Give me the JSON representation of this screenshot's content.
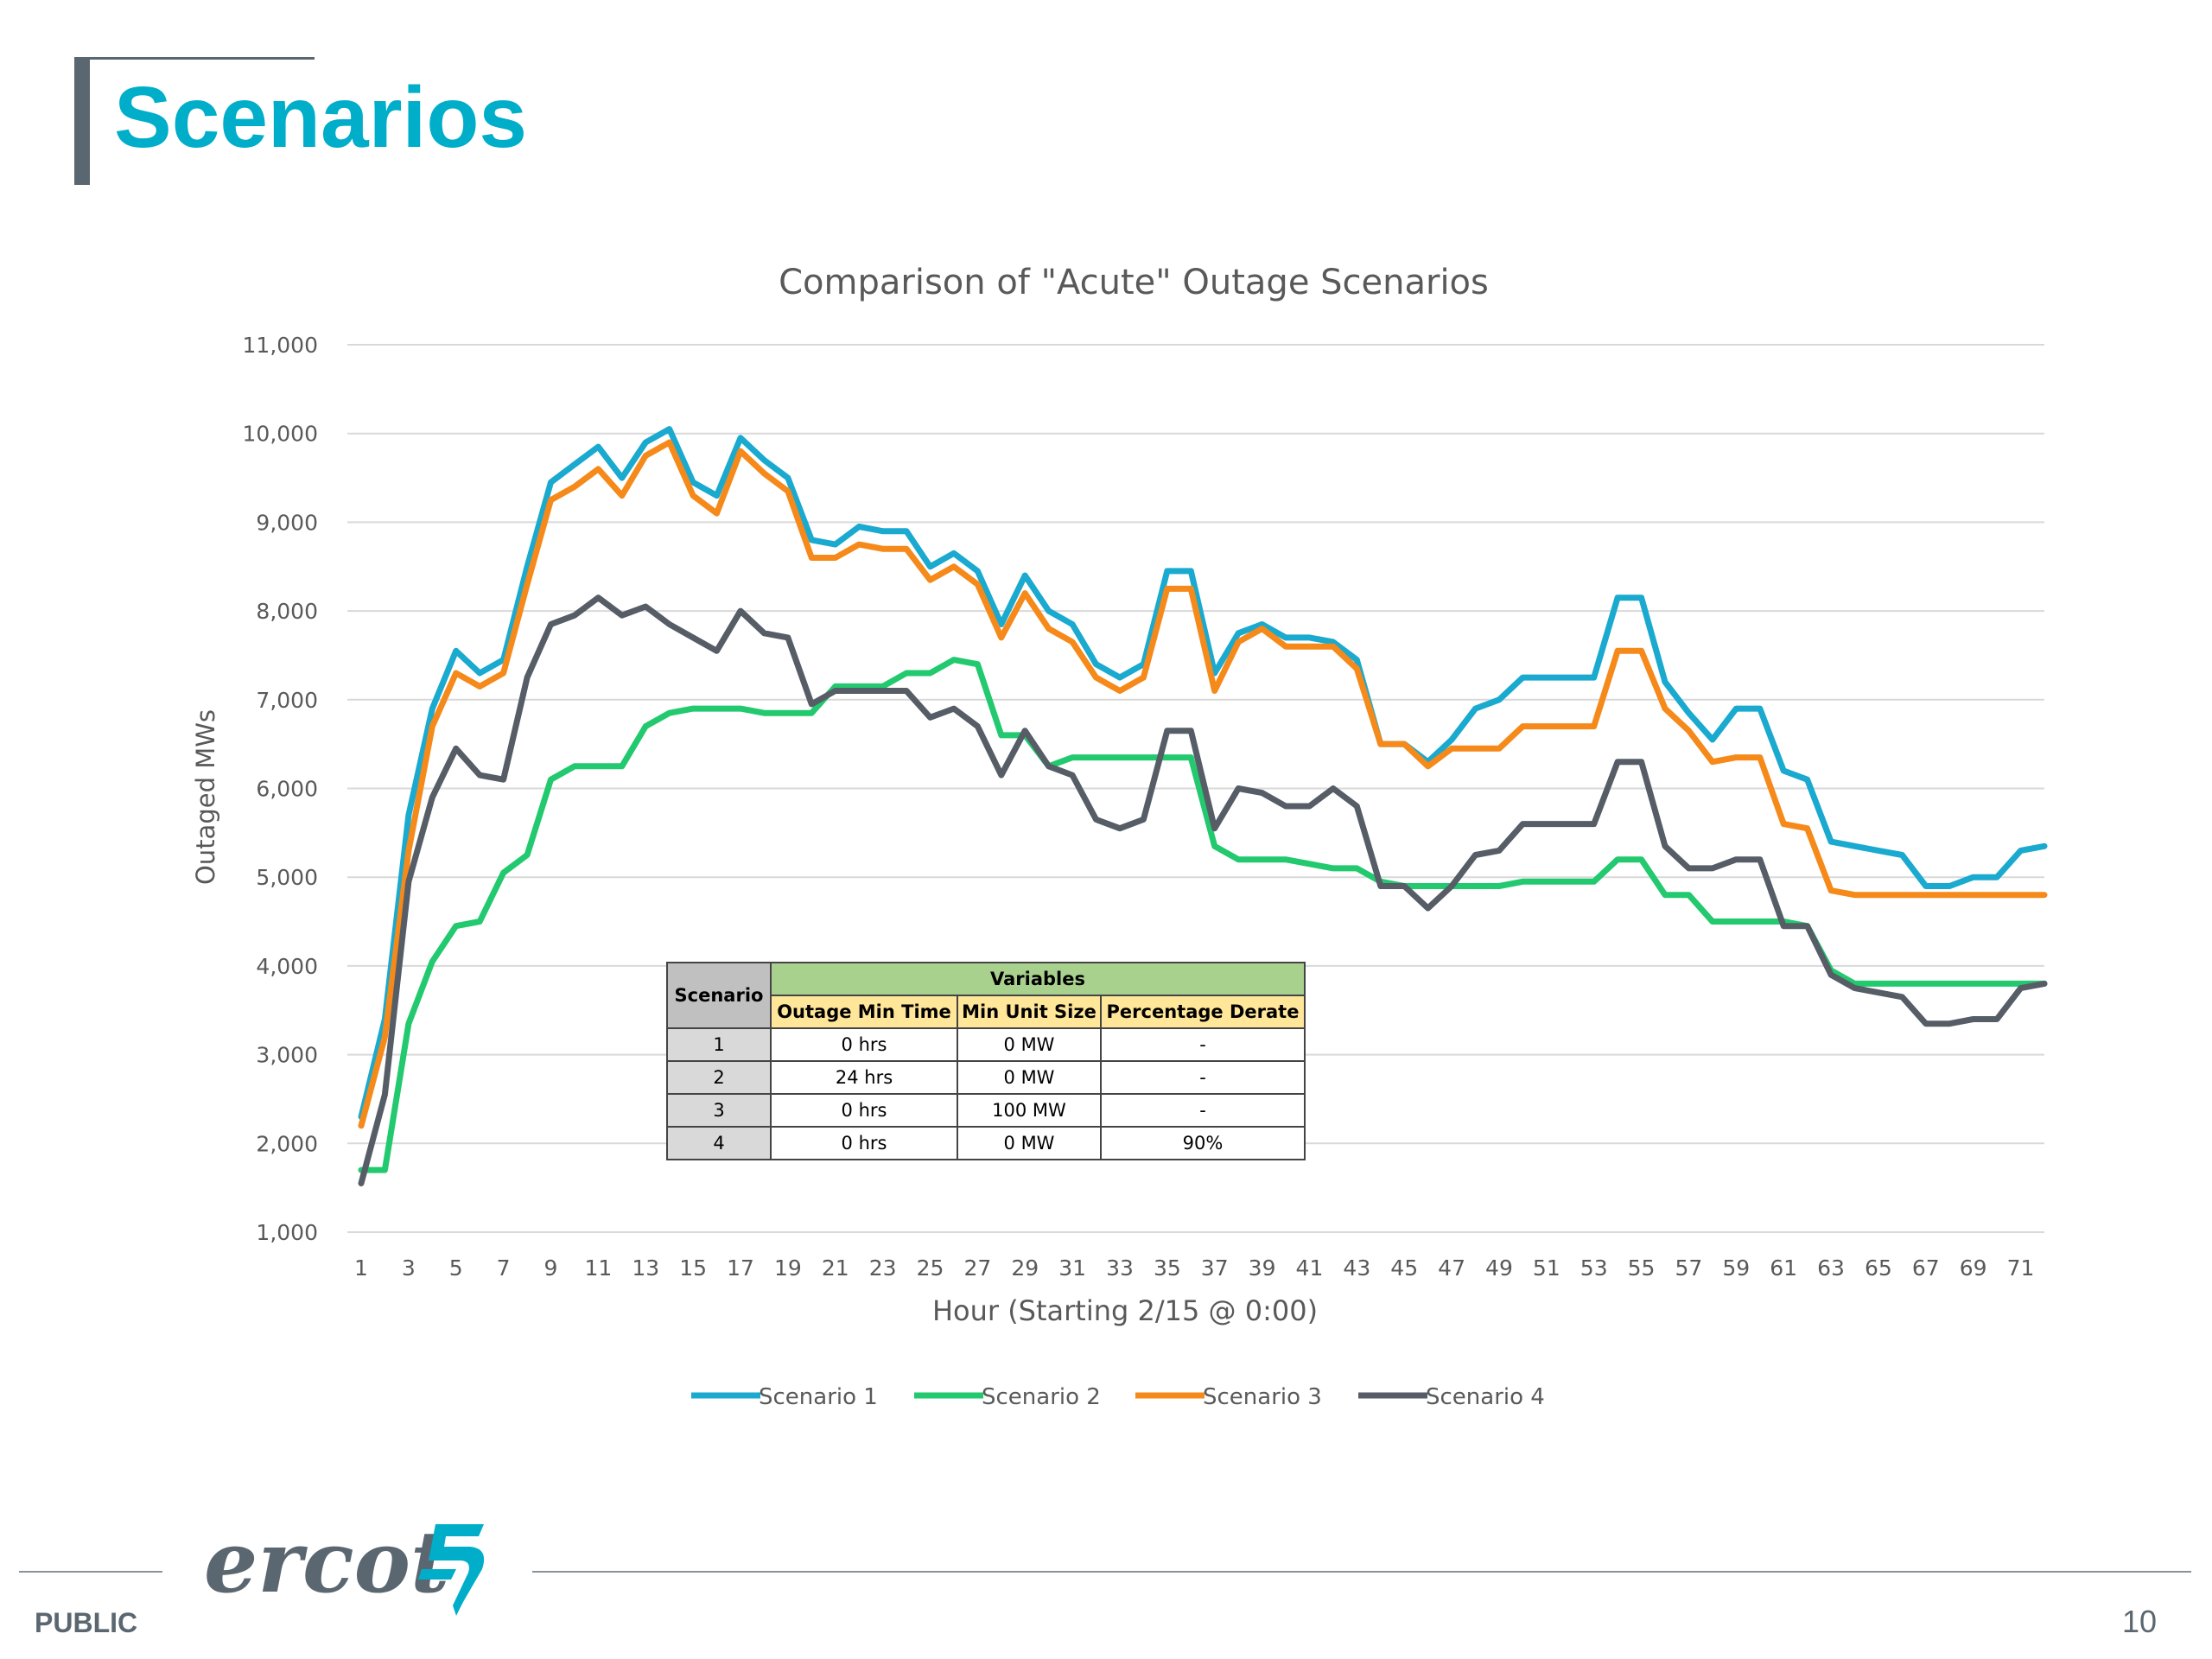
{
  "slide": {
    "title": "Scenarios",
    "footer_label": "PUBLIC",
    "page_number": "10",
    "logo_text": "ercot"
  },
  "colors": {
    "title": "#00aeca",
    "scenario1": "#1aa9cf",
    "scenario2": "#22c96e",
    "scenario3": "#f5891a",
    "scenario4": "#565d66"
  },
  "chart_data": {
    "type": "line",
    "title": "Comparison of \"Acute\" Outage Scenarios",
    "xlabel": "Hour (Starting 2/15 @ 0:00)",
    "ylabel": "Outaged MWs",
    "ylim": [
      1000,
      11000
    ],
    "yticks": [
      "1,000",
      "2,000",
      "3,000",
      "4,000",
      "5,000",
      "6,000",
      "7,000",
      "8,000",
      "9,000",
      "10,000",
      "11,000"
    ],
    "ytick_values": [
      1000,
      2000,
      3000,
      4000,
      5000,
      6000,
      7000,
      8000,
      9000,
      10000,
      11000
    ],
    "xticks": [
      1,
      3,
      5,
      7,
      9,
      11,
      13,
      15,
      17,
      19,
      21,
      23,
      25,
      27,
      29,
      31,
      33,
      35,
      37,
      39,
      41,
      43,
      45,
      47,
      49,
      51,
      53,
      55,
      57,
      59,
      61,
      63,
      65,
      67,
      69,
      71
    ],
    "x_range": [
      1,
      72
    ],
    "grid": "horizontal",
    "legend_position": "bottom",
    "series": [
      {
        "name": "Scenario 1",
        "values": [
          2300,
          3400,
          5700,
          6900,
          7550,
          7300,
          7450,
          8500,
          9450,
          9650,
          9850,
          9500,
          9900,
          10050,
          9450,
          9300,
          9950,
          9700,
          9500,
          8800,
          8750,
          8950,
          8900,
          8900,
          8500,
          8650,
          8450,
          7850,
          8400,
          8000,
          7850,
          7400,
          7250,
          7400,
          8450,
          8450,
          7300,
          7750,
          7850,
          7700,
          7700,
          7650,
          7450,
          6500,
          6500,
          6300,
          6550,
          6900,
          7000,
          7250,
          7250,
          7250,
          7250,
          8150,
          8150,
          7200,
          6850,
          6550,
          6900,
          6900,
          6200,
          6100,
          5400,
          5350,
          5300,
          5250,
          4900,
          4900,
          5000,
          5000,
          5300,
          5350
        ]
      },
      {
        "name": "Scenario 2",
        "values": [
          1700,
          1700,
          3350,
          4050,
          4450,
          4500,
          5050,
          5250,
          6100,
          6250,
          6250,
          6250,
          6700,
          6850,
          6900,
          6900,
          6900,
          6850,
          6850,
          6850,
          7150,
          7150,
          7150,
          7300,
          7300,
          7450,
          7400,
          6600,
          6600,
          6250,
          6350,
          6350,
          6350,
          6350,
          6350,
          6350,
          5350,
          5200,
          5200,
          5200,
          5150,
          5100,
          5100,
          4950,
          4900,
          4900,
          4900,
          4900,
          4900,
          4950,
          4950,
          4950,
          4950,
          5200,
          5200,
          4800,
          4800,
          4500,
          4500,
          4500,
          4500,
          4450,
          3950,
          3800,
          3800,
          3800,
          3800,
          3800,
          3800,
          3800,
          3800,
          3800
        ]
      },
      {
        "name": "Scenario 3",
        "values": [
          2200,
          3200,
          5300,
          6700,
          7300,
          7150,
          7300,
          8300,
          9250,
          9400,
          9600,
          9300,
          9750,
          9900,
          9300,
          9100,
          9800,
          9550,
          9350,
          8600,
          8600,
          8750,
          8700,
          8700,
          8350,
          8500,
          8300,
          7700,
          8200,
          7800,
          7650,
          7250,
          7100,
          7250,
          8250,
          8250,
          7100,
          7650,
          7800,
          7600,
          7600,
          7600,
          7350,
          6500,
          6500,
          6250,
          6450,
          6450,
          6450,
          6700,
          6700,
          6700,
          6700,
          7550,
          7550,
          6900,
          6650,
          6300,
          6350,
          6350,
          5600,
          5550,
          4850,
          4800,
          4800,
          4800,
          4800,
          4800,
          4800,
          4800,
          4800,
          4800
        ]
      },
      {
        "name": "Scenario 4",
        "values": [
          1550,
          2550,
          4950,
          5900,
          6450,
          6150,
          6100,
          7250,
          7850,
          7950,
          8150,
          7950,
          8050,
          7850,
          7700,
          7550,
          8000,
          7750,
          7700,
          6950,
          7100,
          7100,
          7100,
          7100,
          6800,
          6900,
          6700,
          6150,
          6650,
          6250,
          6150,
          5650,
          5550,
          5650,
          6650,
          6650,
          5550,
          6000,
          5950,
          5800,
          5800,
          6000,
          5800,
          4900,
          4900,
          4650,
          4900,
          5250,
          5300,
          5600,
          5600,
          5600,
          5600,
          6300,
          6300,
          5350,
          5100,
          5100,
          5200,
          5200,
          4450,
          4450,
          3900,
          3750,
          3700,
          3650,
          3350,
          3350,
          3400,
          3400,
          3750,
          3800
        ]
      }
    ]
  },
  "table": {
    "scenario_header": "Scenario",
    "variables_header": "Variables",
    "columns": [
      "Outage Min Time",
      "Min Unit Size",
      "Percentage Derate"
    ],
    "rows": [
      [
        "1",
        "0 hrs",
        "0 MW",
        "-"
      ],
      [
        "2",
        "24 hrs",
        "0 MW",
        "-"
      ],
      [
        "3",
        "0 hrs",
        "100 MW",
        "-"
      ],
      [
        "4",
        "0 hrs",
        "0 MW",
        "90%"
      ]
    ]
  }
}
